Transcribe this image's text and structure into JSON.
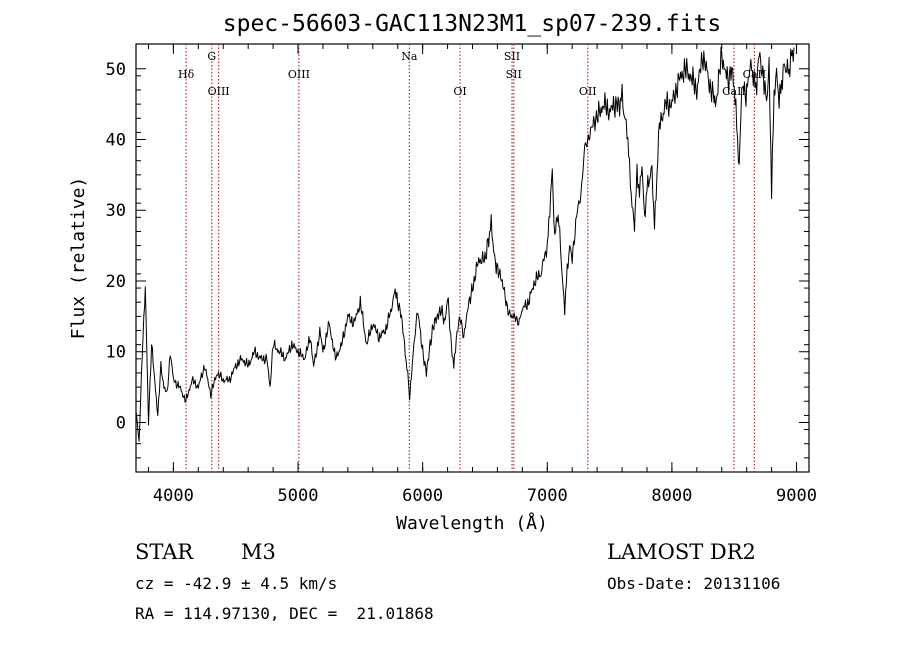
{
  "chart_data": {
    "type": "line",
    "title": "spec-56603-GAC113N23M1_sp07-239.fits",
    "xlabel": "Wavelength (Å)",
    "ylabel": "Flux (relative)",
    "xlim": [
      3700,
      9100
    ],
    "ylim": [
      -7,
      53.5
    ],
    "xticks": [
      4000,
      5000,
      6000,
      7000,
      8000,
      9000
    ],
    "yticks": [
      0,
      10,
      20,
      30,
      40,
      50
    ],
    "grid": false,
    "series": [
      {
        "x": [
          3700,
          3725,
          3750,
          3775,
          3800,
          3825,
          3850,
          3875,
          3900,
          3925,
          3950,
          3975,
          4000,
          4050,
          4100,
          4150,
          4200,
          4250,
          4300,
          4350,
          4400,
          4450,
          4500,
          4550,
          4600,
          4650,
          4700,
          4750,
          4775,
          4800,
          4850,
          4900,
          4950,
          5000,
          5050,
          5100,
          5125,
          5150,
          5175,
          5200,
          5250,
          5300,
          5350,
          5400,
          5450,
          5500,
          5550,
          5600,
          5650,
          5700,
          5750,
          5780,
          5800,
          5830,
          5860,
          5880,
          5895,
          5910,
          5930,
          5960,
          6000,
          6030,
          6060,
          6090,
          6120,
          6150,
          6180,
          6200,
          6230,
          6250,
          6270,
          6300,
          6330,
          6360,
          6400,
          6450,
          6500,
          6530,
          6550,
          6570,
          6590,
          6620,
          6650,
          6680,
          6710,
          6740,
          6770,
          6800,
          6850,
          6900,
          6950,
          6980,
          7000,
          7020,
          7040,
          7060,
          7080,
          7100,
          7120,
          7140,
          7160,
          7180,
          7200,
          7240,
          7270,
          7300,
          7330,
          7360,
          7400,
          7450,
          7500,
          7550,
          7580,
          7600,
          7620,
          7640,
          7660,
          7680,
          7700,
          7720,
          7740,
          7760,
          7780,
          7800,
          7820,
          7840,
          7860,
          7880,
          7900,
          7950,
          8000,
          8050,
          8100,
          8150,
          8200,
          8250,
          8300,
          8350,
          8400,
          8450,
          8480,
          8500,
          8520,
          8540,
          8560,
          8600,
          8620,
          8640,
          8660,
          8680,
          8700,
          8740,
          8760,
          8780,
          8800,
          8820,
          8840,
          8860,
          8880,
          8900,
          8920,
          8940,
          8960,
          8980
        ],
        "y": [
          2,
          -3,
          10,
          19,
          0,
          11,
          6,
          1,
          8,
          5,
          4,
          10,
          6,
          5,
          3,
          6,
          5,
          8,
          4,
          7,
          6,
          6,
          8,
          9,
          8,
          10,
          9,
          9,
          5,
          11,
          10,
          9,
          11,
          10,
          9,
          12,
          8,
          10,
          13,
          10,
          14,
          9,
          11,
          15,
          14,
          17,
          11,
          14,
          12,
          13,
          16,
          19,
          17,
          15,
          10,
          7,
          3,
          7,
          11,
          16,
          10,
          7,
          11,
          14,
          15,
          16,
          14,
          18,
          11,
          8,
          12,
          15,
          12,
          16,
          19,
          23,
          23,
          26,
          28,
          24,
          22,
          21,
          19,
          16,
          15,
          15,
          14,
          16,
          17,
          20,
          21,
          24,
          25,
          30,
          35,
          26,
          30,
          27,
          20,
          16,
          22,
          25,
          23,
          30,
          32,
          39,
          40,
          42,
          43,
          45,
          44,
          45,
          45,
          47,
          43,
          41,
          36,
          31,
          28,
          35,
          32,
          37,
          29,
          33,
          34,
          36,
          28,
          35,
          42,
          45,
          45,
          48,
          50,
          49,
          47,
          52,
          48,
          45,
          52,
          48,
          50,
          47,
          42,
          36,
          48,
          46,
          50,
          51,
          48,
          47,
          52,
          48,
          45,
          50,
          33,
          47,
          49,
          45,
          48,
          51,
          50,
          49,
          52,
          53
        ]
      }
    ],
    "lines": [
      {
        "label": "Hδ",
        "x": 4102,
        "label_row": 1
      },
      {
        "label": "G",
        "x": 4308,
        "label_row": 0
      },
      {
        "label": "OIII",
        "x": 4363,
        "label_row": 2
      },
      {
        "label": "OIII",
        "x": 5007,
        "label_row": 1
      },
      {
        "label": "Na",
        "x": 5893,
        "label_row": 0
      },
      {
        "label": "OI",
        "x": 6300,
        "label_row": 2
      },
      {
        "label": "SII",
        "x": 6717,
        "label_row": 0
      },
      {
        "label": "SII",
        "x": 6731,
        "label_row": 1
      },
      {
        "label": "OII",
        "x": 7325,
        "label_row": 2
      },
      {
        "label": "CaII",
        "x": 8498,
        "label_row": 2
      },
      {
        "label": "CaII",
        "x": 8662,
        "label_row": 1
      }
    ],
    "line_color": "#b22222"
  },
  "info": {
    "object_type": "STAR",
    "subclass": "M3",
    "survey": "LAMOST DR2",
    "velocity": "cz = -42.9 ± 4.5 km/s",
    "obs_date": "Obs-Date: 20131106",
    "coords": "RA = 114.97130, DEC =  21.01868"
  }
}
